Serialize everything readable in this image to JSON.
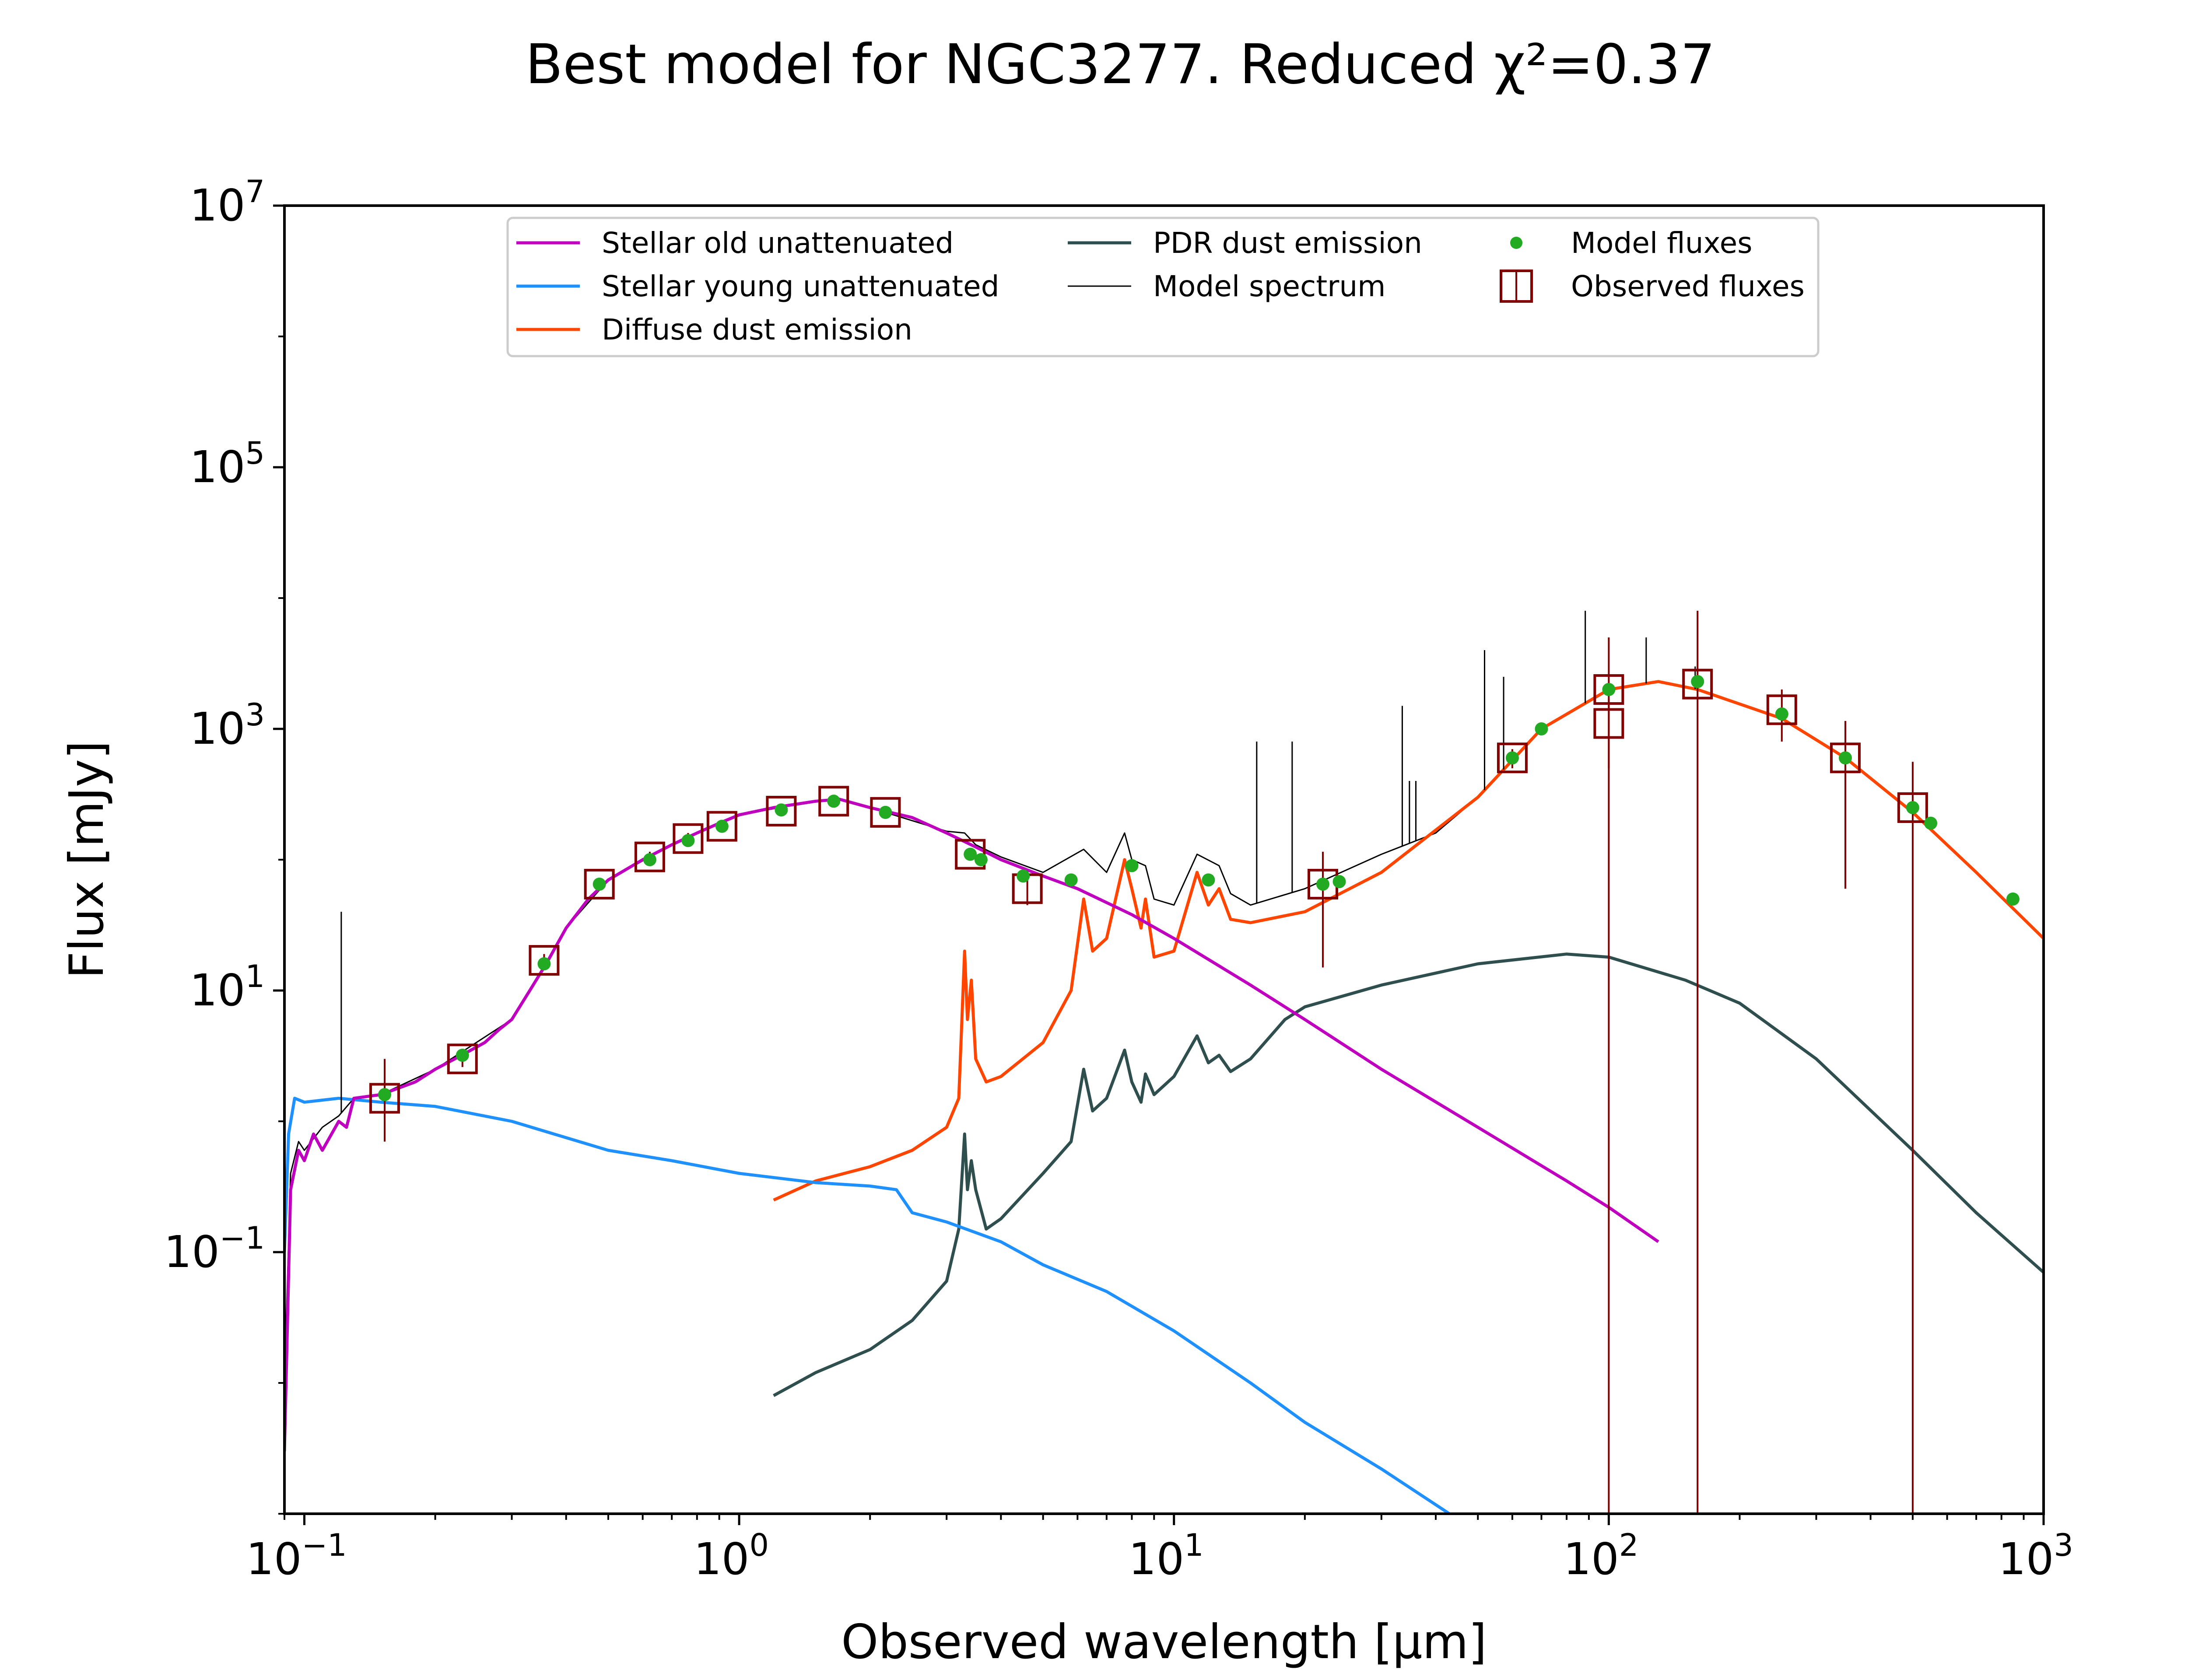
{
  "chart_data": {
    "type": "line",
    "title": "Best model for NGC3277. Reduced χ²=0.37",
    "xlabel": "Observed wavelength [μm]",
    "ylabel": "Flux [mJy]",
    "xscale": "log",
    "yscale": "log",
    "xlim": [
      0.09,
      1000
    ],
    "ylim": [
      0.001,
      10000000
    ],
    "x_ticks": [
      {
        "value": 0.1,
        "base": "10",
        "exp": "−1"
      },
      {
        "value": 1,
        "base": "10",
        "exp": "0"
      },
      {
        "value": 10,
        "base": "10",
        "exp": "1"
      },
      {
        "value": 100,
        "base": "10",
        "exp": "2"
      },
      {
        "value": 1000,
        "base": "10",
        "exp": "3"
      }
    ],
    "y_ticks": [
      {
        "value": 0.1,
        "base": "10",
        "exp": "−1"
      },
      {
        "value": 10,
        "base": "10",
        "exp": "1"
      },
      {
        "value": 1000,
        "base": "10",
        "exp": "3"
      },
      {
        "value": 100000,
        "base": "10",
        "exp": "5"
      },
      {
        "value": 10000000,
        "base": "10",
        "exp": "7"
      }
    ],
    "legend_position": "top-center",
    "legend": [
      "Stellar old unattenuated",
      "Stellar young unattenuated",
      "Diffuse dust emission",
      "PDR dust emission",
      "Model spectrum",
      "Model fluxes",
      "Observed fluxes"
    ],
    "colors": {
      "stellar_old": "#bf00bf",
      "stellar_young": "#1e90ff",
      "diffuse_dust": "#ff4500",
      "pdr_dust": "#2f4f4f",
      "model_spectrum": "#000000",
      "model_fluxes": "#22aa22",
      "observed_fluxes": "#800000"
    },
    "series": [
      {
        "name": "Stellar old unattenuated",
        "points": [
          [
            0.09,
            0.003
          ],
          [
            0.093,
            0.3
          ],
          [
            0.097,
            0.6
          ],
          [
            0.1,
            0.5
          ],
          [
            0.105,
            0.8
          ],
          [
            0.11,
            0.6
          ],
          [
            0.12,
            1.0
          ],
          [
            0.125,
            0.9
          ],
          [
            0.13,
            1.5
          ],
          [
            0.15,
            1.6
          ],
          [
            0.18,
            2.0
          ],
          [
            0.2,
            2.5
          ],
          [
            0.23,
            3.2
          ],
          [
            0.26,
            4.0
          ],
          [
            0.28,
            5.0
          ],
          [
            0.3,
            6.0
          ],
          [
            0.33,
            10
          ],
          [
            0.36,
            16
          ],
          [
            0.4,
            30
          ],
          [
            0.45,
            50
          ],
          [
            0.5,
            70
          ],
          [
            0.6,
            100
          ],
          [
            0.7,
            130
          ],
          [
            0.8,
            160
          ],
          [
            0.9,
            190
          ],
          [
            1.0,
            220
          ],
          [
            1.2,
            250
          ],
          [
            1.5,
            280
          ],
          [
            1.7,
            290
          ],
          [
            2.0,
            250
          ],
          [
            2.5,
            210
          ],
          [
            3.0,
            160
          ],
          [
            3.5,
            125
          ],
          [
            4.0,
            100
          ],
          [
            5.0,
            75
          ],
          [
            6.0,
            60
          ],
          [
            8.0,
            38
          ],
          [
            10,
            25
          ],
          [
            15,
            11
          ],
          [
            20,
            6
          ],
          [
            30,
            2.5
          ],
          [
            50,
            0.9
          ],
          [
            80,
            0.35
          ],
          [
            100,
            0.22
          ],
          [
            130,
            0.12
          ]
        ]
      },
      {
        "name": "Stellar young unattenuated",
        "points": [
          [
            0.09,
            0.1
          ],
          [
            0.092,
            0.8
          ],
          [
            0.095,
            1.5
          ],
          [
            0.1,
            1.4
          ],
          [
            0.12,
            1.5
          ],
          [
            0.15,
            1.4
          ],
          [
            0.2,
            1.3
          ],
          [
            0.3,
            1.0
          ],
          [
            0.4,
            0.75
          ],
          [
            0.5,
            0.6
          ],
          [
            0.7,
            0.5
          ],
          [
            1.0,
            0.4
          ],
          [
            1.5,
            0.34
          ],
          [
            2.0,
            0.32
          ],
          [
            2.3,
            0.3
          ],
          [
            2.5,
            0.2
          ],
          [
            3.0,
            0.17
          ],
          [
            4.0,
            0.12
          ],
          [
            5.0,
            0.08
          ],
          [
            7.0,
            0.05
          ],
          [
            10,
            0.025
          ],
          [
            15,
            0.01
          ],
          [
            20,
            0.005
          ],
          [
            30,
            0.0022
          ],
          [
            43,
            0.001
          ]
        ]
      },
      {
        "name": "Diffuse dust emission",
        "points": [
          [
            1.2,
            0.25
          ],
          [
            1.5,
            0.35
          ],
          [
            2.0,
            0.45
          ],
          [
            2.5,
            0.6
          ],
          [
            3.0,
            0.9
          ],
          [
            3.2,
            1.5
          ],
          [
            3.3,
            20
          ],
          [
            3.35,
            6
          ],
          [
            3.42,
            12
          ],
          [
            3.5,
            3
          ],
          [
            3.7,
            2
          ],
          [
            4.0,
            2.2
          ],
          [
            5.0,
            4
          ],
          [
            5.8,
            10
          ],
          [
            6.2,
            50
          ],
          [
            6.5,
            20
          ],
          [
            7.0,
            25
          ],
          [
            7.7,
            100
          ],
          [
            8.0,
            60
          ],
          [
            8.4,
            30
          ],
          [
            8.6,
            50
          ],
          [
            9.0,
            18
          ],
          [
            10,
            20
          ],
          [
            11.3,
            80
          ],
          [
            12.0,
            45
          ],
          [
            12.7,
            60
          ],
          [
            13.5,
            35
          ],
          [
            15,
            33
          ],
          [
            20,
            40
          ],
          [
            30,
            80
          ],
          [
            50,
            300
          ],
          [
            70,
            1000
          ],
          [
            100,
            2000
          ],
          [
            130,
            2300
          ],
          [
            160,
            2000
          ],
          [
            250,
            1200
          ],
          [
            350,
            600
          ],
          [
            500,
            230
          ],
          [
            700,
            80
          ],
          [
            1000,
            25
          ]
        ]
      },
      {
        "name": "PDR dust emission",
        "points": [
          [
            1.2,
            0.008
          ],
          [
            1.5,
            0.012
          ],
          [
            2.0,
            0.018
          ],
          [
            2.5,
            0.03
          ],
          [
            3.0,
            0.06
          ],
          [
            3.2,
            0.15
          ],
          [
            3.3,
            0.8
          ],
          [
            3.35,
            0.3
          ],
          [
            3.42,
            0.5
          ],
          [
            3.5,
            0.3
          ],
          [
            3.7,
            0.15
          ],
          [
            4.0,
            0.18
          ],
          [
            5.0,
            0.4
          ],
          [
            5.8,
            0.7
          ],
          [
            6.2,
            2.5
          ],
          [
            6.5,
            1.2
          ],
          [
            7.0,
            1.5
          ],
          [
            7.7,
            3.5
          ],
          [
            8.0,
            2
          ],
          [
            8.4,
            1.4
          ],
          [
            8.6,
            2.3
          ],
          [
            9.0,
            1.6
          ],
          [
            10,
            2.2
          ],
          [
            11.3,
            4.5
          ],
          [
            12.0,
            2.8
          ],
          [
            12.7,
            3.2
          ],
          [
            13.5,
            2.4
          ],
          [
            15,
            3
          ],
          [
            18,
            6
          ],
          [
            20,
            7.5
          ],
          [
            30,
            11
          ],
          [
            50,
            16
          ],
          [
            80,
            19
          ],
          [
            100,
            18
          ],
          [
            150,
            12
          ],
          [
            200,
            8
          ],
          [
            300,
            3
          ],
          [
            500,
            0.6
          ],
          [
            700,
            0.2
          ],
          [
            1000,
            0.07
          ]
        ]
      },
      {
        "name": "Model spectrum",
        "points": [
          [
            0.09,
            0.01
          ],
          [
            0.093,
            0.4
          ],
          [
            0.097,
            0.7
          ],
          [
            0.1,
            0.6
          ],
          [
            0.11,
            0.9
          ],
          [
            0.12,
            1.1
          ],
          [
            0.13,
            1.5
          ],
          [
            0.15,
            1.6
          ],
          [
            0.2,
            2.5
          ],
          [
            0.3,
            6
          ],
          [
            0.36,
            16
          ],
          [
            0.4,
            30
          ],
          [
            0.5,
            70
          ],
          [
            0.7,
            130
          ],
          [
            1.0,
            220
          ],
          [
            1.5,
            280
          ],
          [
            1.7,
            290
          ],
          [
            2.0,
            250
          ],
          [
            3.0,
            165
          ],
          [
            3.3,
            160
          ],
          [
            3.5,
            130
          ],
          [
            4.0,
            105
          ],
          [
            5.0,
            80
          ],
          [
            6.2,
            120
          ],
          [
            7.0,
            80
          ],
          [
            7.7,
            160
          ],
          [
            8.0,
            100
          ],
          [
            8.6,
            90
          ],
          [
            9.0,
            50
          ],
          [
            10,
            45
          ],
          [
            11.3,
            110
          ],
          [
            12.7,
            90
          ],
          [
            13.5,
            55
          ],
          [
            15,
            45
          ],
          [
            20,
            60
          ],
          [
            30,
            110
          ],
          [
            40,
            160
          ],
          [
            50,
            300
          ],
          [
            70,
            1000
          ],
          [
            100,
            2000
          ],
          [
            130,
            2300
          ],
          [
            160,
            2000
          ],
          [
            250,
            1200
          ],
          [
            350,
            600
          ],
          [
            500,
            230
          ],
          [
            700,
            80
          ],
          [
            1000,
            25
          ]
        ]
      }
    ],
    "emission_lines": [
      {
        "x": 0.1216,
        "peak": 40
      },
      {
        "x": 15.5,
        "peak": 800
      },
      {
        "x": 18.7,
        "peak": 800
      },
      {
        "x": 33.5,
        "peak": 1500
      },
      {
        "x": 34.8,
        "peak": 400
      },
      {
        "x": 36.0,
        "peak": 400
      },
      {
        "x": 51.8,
        "peak": 4000
      },
      {
        "x": 57.3,
        "peak": 2500
      },
      {
        "x": 88.3,
        "peak": 8000
      },
      {
        "x": 121.9,
        "peak": 5000
      },
      {
        "x": 158,
        "peak": 3000
      }
    ],
    "model_fluxes": [
      [
        0.153,
        1.6
      ],
      [
        0.231,
        3.2
      ],
      [
        0.356,
        16
      ],
      [
        0.477,
        65
      ],
      [
        0.623,
        100
      ],
      [
        0.763,
        140
      ],
      [
        0.913,
        180
      ],
      [
        1.25,
        240
      ],
      [
        1.65,
        280
      ],
      [
        2.17,
        230
      ],
      [
        3.4,
        110
      ],
      [
        3.6,
        100
      ],
      [
        4.5,
        75
      ],
      [
        5.8,
        70
      ],
      [
        8.0,
        90
      ],
      [
        12,
        70
      ],
      [
        22,
        65
      ],
      [
        24,
        68
      ],
      [
        60,
        600
      ],
      [
        70,
        1000
      ],
      [
        100,
        2000
      ],
      [
        160,
        2300
      ],
      [
        250,
        1300
      ],
      [
        350,
        600
      ],
      [
        500,
        250
      ],
      [
        550,
        190
      ],
      [
        850,
        50
      ]
    ],
    "observed_fluxes": [
      {
        "x": 0.153,
        "y": 1.5,
        "lo": 0.7,
        "hi": 3.0
      },
      {
        "x": 0.231,
        "y": 3.0,
        "lo": 2.6,
        "hi": 3.4
      },
      {
        "x": 0.356,
        "y": 17,
        "lo": 15,
        "hi": 19
      },
      {
        "x": 0.477,
        "y": 65,
        "lo": 58,
        "hi": 72
      },
      {
        "x": 0.623,
        "y": 105,
        "lo": 95,
        "hi": 115
      },
      {
        "x": 0.763,
        "y": 145,
        "lo": 130,
        "hi": 160
      },
      {
        "x": 0.913,
        "y": 180,
        "lo": 165,
        "hi": 195
      },
      {
        "x": 1.25,
        "y": 235,
        "lo": 215,
        "hi": 255
      },
      {
        "x": 1.65,
        "y": 280,
        "lo": 255,
        "hi": 305
      },
      {
        "x": 2.17,
        "y": 230,
        "lo": 210,
        "hi": 250
      },
      {
        "x": 3.4,
        "y": 110,
        "lo": 100,
        "hi": 120
      },
      {
        "x": 4.6,
        "y": 60,
        "lo": 45,
        "hi": 75
      },
      {
        "x": 22,
        "y": 65,
        "lo": 15,
        "hi": 115
      },
      {
        "x": 60,
        "y": 600,
        "lo": 500,
        "hi": 700
      },
      {
        "x": 100,
        "y": 2000,
        "lo": 0.001,
        "hi": 5000
      },
      {
        "x": 100,
        "y": 1100,
        "lo": 500,
        "hi": 1700
      },
      {
        "x": 160,
        "y": 2200,
        "lo": 0.001,
        "hi": 8000
      },
      {
        "x": 250,
        "y": 1400,
        "lo": 800,
        "hi": 2000
      },
      {
        "x": 350,
        "y": 600,
        "lo": 60,
        "hi": 1150
      },
      {
        "x": 500,
        "y": 250,
        "lo": 0.001,
        "hi": 560
      }
    ]
  }
}
